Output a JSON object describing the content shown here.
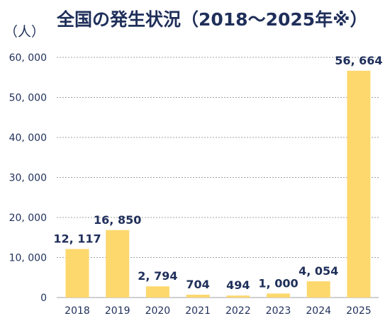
{
  "chart_data": {
    "type": "bar",
    "title": "全国の発生状況（2018～2025年※）",
    "ylabel": "（人）",
    "xlabel": "",
    "categories": [
      "2018",
      "2019",
      "2020",
      "2021",
      "2022",
      "2023",
      "2024",
      "2025"
    ],
    "values": [
      12117,
      16850,
      2794,
      704,
      494,
      1000,
      4054,
      56664
    ],
    "value_labels": [
      "12, 117",
      "16, 850",
      "2, 794",
      "704",
      "494",
      "1, 000",
      "4, 054",
      "56, 664"
    ],
    "yticks": [
      0,
      10000,
      20000,
      30000,
      40000,
      50000,
      60000
    ],
    "ytick_labels": [
      "0",
      "10, 000",
      "20, 000",
      "30, 000",
      "40, 000",
      "50, 000",
      "60, 000"
    ],
    "ylim": [
      0,
      60000
    ],
    "grid": true,
    "legend": "none",
    "colors": {
      "bar": "#fdd86d",
      "grid": "#a0a0a0",
      "text": "#1f2f5a"
    }
  }
}
